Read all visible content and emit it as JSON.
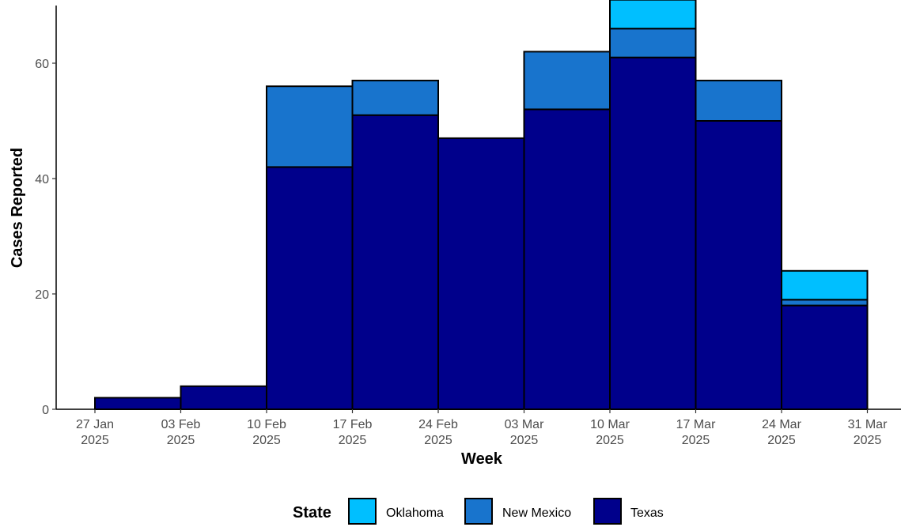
{
  "chart_data": {
    "type": "bar",
    "stacked": true,
    "xlabel": "Week",
    "ylabel": "Cases Reported",
    "ylim": [
      0,
      70
    ],
    "yticks": [
      0,
      20,
      40,
      60
    ],
    "grid": false,
    "legend_position": "bottom",
    "x_ticks": [
      {
        "line1": "27 Jan",
        "line2": "2025"
      },
      {
        "line1": "03 Feb",
        "line2": "2025"
      },
      {
        "line1": "10 Feb",
        "line2": "2025"
      },
      {
        "line1": "17 Feb",
        "line2": "2025"
      },
      {
        "line1": "24 Feb",
        "line2": "2025"
      },
      {
        "line1": "03 Mar",
        "line2": "2025"
      },
      {
        "line1": "10 Mar",
        "line2": "2025"
      },
      {
        "line1": "17 Mar",
        "line2": "2025"
      },
      {
        "line1": "24 Mar",
        "line2": "2025"
      },
      {
        "line1": "31 Mar",
        "line2": "2025"
      }
    ],
    "weeks_start": [
      "2025-01-27",
      "2025-02-03",
      "2025-02-10",
      "2025-02-17",
      "2025-02-24",
      "2025-03-03",
      "2025-03-10",
      "2025-03-17",
      "2025-03-24"
    ],
    "series": [
      {
        "name": "Texas",
        "color": "#00008B",
        "values": [
          2,
          4,
          42,
          51,
          47,
          52,
          61,
          50,
          18
        ]
      },
      {
        "name": "New Mexico",
        "color": "#1874CD",
        "values": [
          0,
          0,
          14,
          6,
          0,
          10,
          5,
          7,
          1
        ]
      },
      {
        "name": "Oklahoma",
        "color": "#00BFFF",
        "values": [
          0,
          0,
          0,
          0,
          0,
          0,
          5,
          0,
          5
        ]
      }
    ],
    "legend": {
      "title": "State",
      "entries": [
        {
          "label": "Oklahoma",
          "color": "#00BFFF"
        },
        {
          "label": "New Mexico",
          "color": "#1874CD"
        },
        {
          "label": "Texas",
          "color": "#00008B"
        }
      ]
    }
  }
}
